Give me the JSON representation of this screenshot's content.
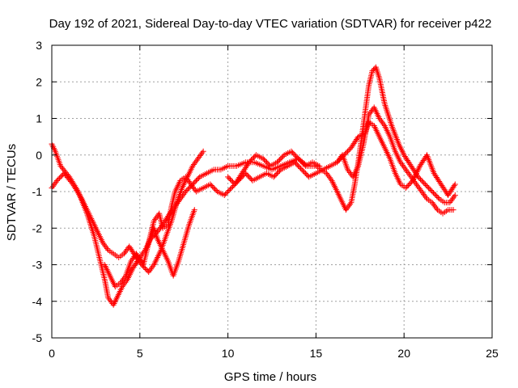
{
  "chart_data": {
    "type": "scatter",
    "title": "Day 192 of 2021, Sidereal Day-to-day VTEC variation (SDTVAR) for receiver p422",
    "xlabel": "GPS time / hours",
    "ylabel": "SDTVAR / TECUs",
    "xlim": [
      0,
      25
    ],
    "ylim": [
      -5,
      3
    ],
    "xticks": [
      0,
      5,
      10,
      15,
      20,
      25
    ],
    "yticks": [
      -5,
      -4,
      -3,
      -2,
      -1,
      0,
      1,
      2,
      3
    ],
    "grid": true,
    "marker": "+",
    "series": [
      {
        "name": "p422",
        "color": "#ff0000",
        "branches": [
          {
            "x": [
              0.0,
              0.2,
              0.5,
              1.0,
              1.5,
              2.0,
              2.4,
              2.7,
              3.0,
              3.2,
              3.5,
              3.7,
              4.0,
              4.3,
              4.6,
              5.0,
              5.3,
              5.6,
              6.0,
              6.3,
              6.7,
              7.0,
              7.3,
              7.6,
              8.0,
              8.4,
              8.8,
              9.2,
              9.6,
              10.0,
              10.5,
              11.0,
              11.5,
              12.0,
              12.5,
              13.0,
              13.5,
              14.0,
              14.5,
              15.0,
              15.3,
              15.6,
              15.9,
              16.1,
              16.4,
              16.7,
              17.0,
              17.2,
              17.4,
              17.6,
              17.8,
              18.0,
              18.2,
              18.4,
              18.6,
              18.9,
              19.3,
              19.7,
              20.0,
              20.4,
              20.8,
              21.2,
              21.6,
              22.0,
              22.3,
              22.6,
              22.9
            ],
            "y": [
              0.3,
              0.1,
              -0.3,
              -0.6,
              -1.0,
              -1.6,
              -2.2,
              -2.8,
              -3.4,
              -3.9,
              -4.1,
              -3.9,
              -3.6,
              -3.4,
              -3.1,
              -2.8,
              -2.6,
              -2.3,
              -2.1,
              -1.9,
              -1.6,
              -1.4,
              -1.2,
              -1.0,
              -0.8,
              -0.6,
              -0.5,
              -0.4,
              -0.4,
              -0.3,
              -0.3,
              -0.2,
              -0.2,
              -0.3,
              -0.4,
              -0.3,
              -0.2,
              -0.1,
              -0.3,
              -0.3,
              -0.4,
              -0.5,
              -0.7,
              -0.9,
              -1.2,
              -1.5,
              -1.3,
              -0.8,
              -0.2,
              0.5,
              1.2,
              1.9,
              2.3,
              2.4,
              2.1,
              1.4,
              0.8,
              0.3,
              0.0,
              -0.3,
              -0.6,
              -0.8,
              -1.0,
              -1.2,
              -1.3,
              -1.3,
              -1.1
            ]
          },
          {
            "x": [
              0.0,
              0.3,
              0.7,
              1.2,
              1.7,
              2.2,
              2.6,
              2.9,
              3.2,
              3.5,
              3.8,
              4.1,
              4.4,
              4.8,
              5.1,
              5.5,
              5.8,
              6.2,
              6.5,
              6.8,
              7.1,
              7.4,
              7.7,
              8.0,
              8.3,
              8.6
            ],
            "y": [
              -0.9,
              -0.7,
              -0.5,
              -0.8,
              -1.2,
              -1.7,
              -2.1,
              -2.4,
              -2.6,
              -2.7,
              -2.8,
              -2.7,
              -2.5,
              -2.8,
              -3.0,
              -3.2,
              -3.0,
              -2.6,
              -2.2,
              -1.8,
              -1.3,
              -0.9,
              -0.6,
              -0.3,
              -0.1,
              0.1
            ]
          },
          {
            "x": [
              3.0,
              3.3,
              3.6,
              3.9,
              4.2,
              4.5,
              4.8,
              5.2,
              5.5,
              5.8,
              6.0,
              6.3,
              6.6,
              6.9,
              7.2,
              7.5,
              7.8,
              8.1
            ],
            "y": [
              -3.0,
              -3.3,
              -3.6,
              -3.5,
              -3.3,
              -2.9,
              -2.7,
              -3.0,
              -2.4,
              -2.0,
              -2.3,
              -2.6,
              -2.9,
              -3.3,
              -2.9,
              -2.4,
              -1.9,
              -1.5
            ]
          },
          {
            "x": [
              5.5,
              5.8,
              6.1,
              6.3,
              6.6,
              6.8,
              7.0,
              7.3,
              7.6,
              7.9,
              8.2,
              8.6,
              9.0,
              9.4,
              9.8,
              10.2,
              10.6,
              11.0,
              11.4,
              11.8,
              12.2,
              12.6,
              13.0,
              13.4,
              13.8,
              14.2,
              14.6,
              15.0,
              15.4,
              15.8,
              16.2,
              16.6,
              17.0,
              17.4,
              17.8,
              18.0,
              18.3,
              18.6,
              18.9,
              19.2,
              19.5,
              19.8,
              20.1,
              20.5,
              20.9,
              21.3,
              21.7,
              22.1,
              22.5,
              22.9
            ],
            "y": [
              -2.4,
              -1.8,
              -1.6,
              -2.0,
              -1.9,
              -1.4,
              -1.0,
              -0.7,
              -0.6,
              -0.8,
              -1.0,
              -0.9,
              -0.8,
              -1.0,
              -1.1,
              -0.9,
              -0.7,
              -0.5,
              -0.7,
              -0.6,
              -0.5,
              -0.6,
              -0.4,
              -0.3,
              -0.2,
              -0.4,
              -0.6,
              -0.5,
              -0.4,
              -0.3,
              -0.2,
              0.0,
              0.2,
              0.5,
              0.6,
              0.9,
              0.8,
              0.5,
              0.2,
              -0.1,
              -0.5,
              -0.8,
              -0.9,
              -0.7,
              -0.3,
              0.0,
              -0.5,
              -0.8,
              -1.1,
              -0.8
            ]
          },
          {
            "x": [
              16.2,
              16.5,
              16.8,
              17.1,
              17.4,
              17.7,
              18.0,
              18.3,
              18.6,
              18.9,
              19.2,
              19.5,
              19.8,
              20.1,
              20.4,
              20.7,
              21.0,
              21.3,
              21.6,
              21.9,
              22.2,
              22.5,
              22.8
            ],
            "y": [
              -0.2,
              0.0,
              -0.4,
              -0.6,
              -0.3,
              0.3,
              1.1,
              1.3,
              1.0,
              0.8,
              0.5,
              0.1,
              -0.2,
              -0.4,
              -0.6,
              -0.8,
              -1.0,
              -1.2,
              -1.3,
              -1.5,
              -1.6,
              -1.5,
              -1.5
            ]
          },
          {
            "x": [
              10.0,
              10.4,
              10.8,
              11.2,
              11.6,
              12.0,
              12.4,
              12.8,
              13.2,
              13.6,
              14.0,
              14.4,
              14.8,
              15.2
            ],
            "y": [
              -0.6,
              -0.8,
              -0.5,
              -0.2,
              0.0,
              -0.1,
              -0.3,
              -0.2,
              0.0,
              0.1,
              -0.1,
              -0.3,
              -0.2,
              -0.3
            ]
          }
        ]
      }
    ]
  }
}
